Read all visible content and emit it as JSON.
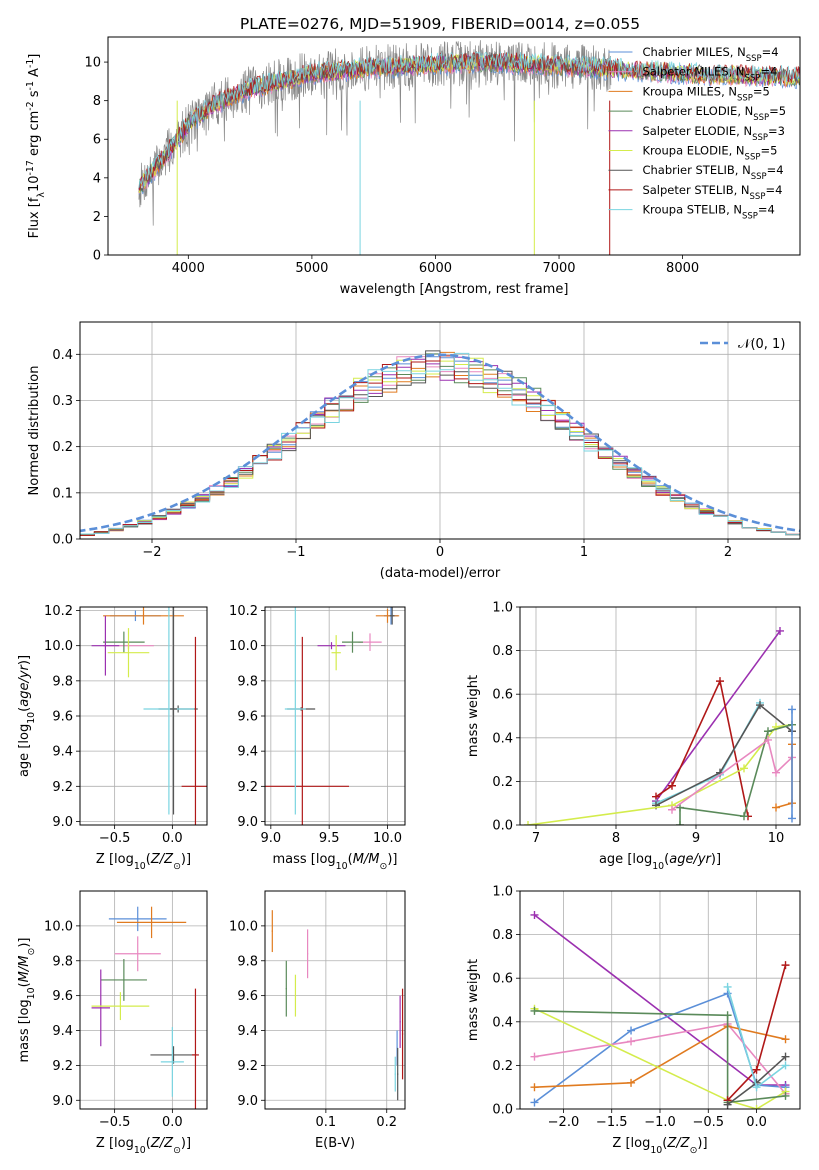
{
  "figure": {
    "title": "PLATE=0276, MJD=51909, FIBERID=0014, z=0.055"
  },
  "colors": {
    "chabrier_miles": "#5b8fd8",
    "salpeter_miles": "#e888c0",
    "kroupa_miles": "#e07b20",
    "chabrier_elodie": "#5a8a5a",
    "salpeter_elodie": "#9b30b0",
    "kroupa_elodie": "#d4ec4c",
    "chabrier_stelib": "#555555",
    "salpeter_stelib": "#b01818",
    "kroupa_stelib": "#7ad4e0",
    "data_gray": "#888888",
    "normal": "#5b8fd8"
  },
  "chart_data": [
    {
      "id": "spectrum",
      "type": "line",
      "xlabel": "wavelength [Angstrom, rest frame]",
      "ylabel": "Flux [f$_\\lambda$10$^{-17}$ erg cm$^{-2}$ s$^{-1}$ A$^{-1}$]",
      "xlim": [
        3350,
        8950
      ],
      "ylim": [
        0,
        11.3
      ],
      "xticks": [
        4000,
        5000,
        6000,
        7000,
        8000
      ],
      "yticks": [
        0,
        2,
        4,
        6,
        8,
        10
      ],
      "data_range": [
        3600,
        7420
      ],
      "model_range": [
        3600,
        9200
      ],
      "continuum": [
        [
          3600,
          3.5
        ],
        [
          3800,
          5.0
        ],
        [
          4000,
          6.8
        ],
        [
          4200,
          7.8
        ],
        [
          4500,
          8.6
        ],
        [
          5000,
          9.4
        ],
        [
          5500,
          9.7
        ],
        [
          6000,
          9.9
        ],
        [
          6500,
          10.0
        ],
        [
          7000,
          9.8
        ],
        [
          7500,
          9.6
        ],
        [
          8000,
          9.4
        ],
        [
          8500,
          9.3
        ],
        [
          9000,
          9.2
        ]
      ],
      "legend": [
        {
          "label": "Chabrier MILES, N",
          "sub": "SSP",
          "suffix": "=4",
          "color": "#5b8fd8"
        },
        {
          "label": "Salpeter MILES, N",
          "sub": "SSP",
          "suffix": "=4",
          "color": "#e888c0"
        },
        {
          "label": "Kroupa MILES, N",
          "sub": "SSP",
          "suffix": "=5",
          "color": "#e07b20"
        },
        {
          "label": "Chabrier ELODIE, N",
          "sub": "SSP",
          "suffix": "=5",
          "color": "#5a8a5a"
        },
        {
          "label": "Salpeter ELODIE, N",
          "sub": "SSP",
          "suffix": "=3",
          "color": "#9b30b0"
        },
        {
          "label": "Kroupa ELODIE, N",
          "sub": "SSP",
          "suffix": "=5",
          "color": "#d4ec4c"
        },
        {
          "label": "Chabrier STELIB, N",
          "sub": "SSP",
          "suffix": "=4",
          "color": "#555555"
        },
        {
          "label": "Salpeter STELIB, N",
          "sub": "SSP",
          "suffix": "=4",
          "color": "#b01818"
        },
        {
          "label": "Kroupa STELIB, N",
          "sub": "SSP",
          "suffix": "=4",
          "color": "#7ad4e0"
        }
      ]
    },
    {
      "id": "residuals",
      "type": "histogram",
      "xlabel": "(data-model)/error",
      "ylabel": "Normed distribution",
      "xlim": [
        -2.5,
        2.5
      ],
      "ylim": [
        0,
        0.47
      ],
      "xticks": [
        -2,
        -1,
        0,
        1,
        2
      ],
      "yticks": [
        0.0,
        0.1,
        0.2,
        0.3,
        0.4
      ],
      "bin_width": 0.1,
      "legend_label": "$\\mathcal{N}(0, 1)$"
    },
    {
      "id": "age_vs_z",
      "type": "errorbar",
      "xlabel": "Z [log$_{10}$($Z/Z_\\odot$)]",
      "ylabel": "age  [log$_{10}$($age/yr$)]",
      "xlim": [
        -0.8,
        0.3
      ],
      "ylim": [
        8.98,
        10.22
      ],
      "xticks": [
        -0.5,
        0.0
      ],
      "yticks": [
        9.0,
        9.2,
        9.4,
        9.6,
        9.8,
        10.0,
        10.2
      ],
      "points": [
        {
          "c": "chabrier_miles",
          "x": -0.32,
          "y": 10.17,
          "xe": 0.22,
          "ye": 0.03
        },
        {
          "c": "salpeter_miles",
          "x": -0.38,
          "y": 10.0,
          "xe": 0.22,
          "ye": 0.02
        },
        {
          "c": "kroupa_miles",
          "x": -0.25,
          "y": 10.17,
          "xe": 0.35,
          "ye": 0.05
        },
        {
          "c": "chabrier_elodie",
          "x": -0.42,
          "y": 10.02,
          "xe": 0.18,
          "ye": 0.06
        },
        {
          "c": "salpeter_elodie",
          "x": -0.58,
          "y": 10.0,
          "xe": 0.12,
          "ye": 0.17
        },
        {
          "c": "kroupa_elodie",
          "x": -0.38,
          "y": 9.96,
          "xe": 0.18,
          "ye": 0.14
        },
        {
          "c": "chabrier_stelib",
          "x": 0.05,
          "y": 9.64,
          "xe": 0.17,
          "ye": 0.02
        },
        {
          "c": "salpeter_stelib",
          "x": 0.2,
          "y": 9.2,
          "xe": 0.12,
          "ye": 0.85
        },
        {
          "c": "kroupa_stelib",
          "x": -0.03,
          "y": 9.64,
          "xe": 0.22,
          "ye": 0.6
        },
        {
          "c": "chabrier_stelib",
          "x": 0.01,
          "y": 9.64,
          "xe": 0.03,
          "ye": 0.6
        }
      ]
    },
    {
      "id": "age_vs_mass",
      "type": "errorbar",
      "xlabel": "mass [log$_{10}$($M/M_\\odot$)]",
      "ylabel": "",
      "xlim": [
        8.95,
        10.15
      ],
      "ylim": [
        8.98,
        10.22
      ],
      "xticks": [
        9.0,
        9.5,
        10.0
      ],
      "yticks": [
        9.0,
        9.2,
        9.4,
        9.6,
        9.8,
        10.0,
        10.2
      ],
      "points": [
        {
          "c": "chabrier_miles",
          "x": 10.03,
          "y": 10.17,
          "xe": 0.06,
          "ye": 0.05
        },
        {
          "c": "salpeter_miles",
          "x": 9.85,
          "y": 10.02,
          "xe": 0.1,
          "ye": 0.05
        },
        {
          "c": "kroupa_miles",
          "x": 10.0,
          "y": 10.17,
          "xe": 0.1,
          "ye": 0.04
        },
        {
          "c": "chabrier_elodie",
          "x": 9.7,
          "y": 10.02,
          "xe": 0.09,
          "ye": 0.06
        },
        {
          "c": "salpeter_elodie",
          "x": 9.52,
          "y": 10.0,
          "xe": 0.12,
          "ye": 0.02
        },
        {
          "c": "kroupa_elodie",
          "x": 9.56,
          "y": 9.96,
          "xe": 0.04,
          "ye": 0.1
        },
        {
          "c": "chabrier_stelib",
          "x": 9.26,
          "y": 9.64,
          "xe": 0.12,
          "ye": 0.01
        },
        {
          "c": "salpeter_stelib",
          "x": 9.27,
          "y": 9.2,
          "xe": 0.4,
          "ye": 0.85
        },
        {
          "c": "kroupa_stelib",
          "x": 9.21,
          "y": 9.64,
          "xe": 0.09,
          "ye": 0.6
        },
        {
          "c": "chabrier_stelib",
          "x": 10.04,
          "y": 10.17,
          "xe": 0.02,
          "ye": 0.05
        }
      ]
    },
    {
      "id": "weight_vs_age",
      "type": "line",
      "xlabel": "age  [log$_{10}$($age/yr$)]",
      "ylabel": "mass weight",
      "xlim": [
        6.8,
        10.3
      ],
      "ylim": [
        0,
        1.0
      ],
      "xticks": [
        7,
        8,
        9,
        10
      ],
      "yticks": [
        0.0,
        0.2,
        0.4,
        0.6,
        0.8,
        1.0
      ],
      "series": [
        {
          "c": "salpeter_elodie",
          "x": [
            8.5,
            10.05
          ],
          "y": [
            0.11,
            0.89
          ]
        },
        {
          "c": "salpeter_stelib",
          "x": [
            8.5,
            8.7,
            9.3,
            9.65
          ],
          "y": [
            0.13,
            0.18,
            0.66,
            0.04
          ]
        },
        {
          "c": "kroupa_stelib",
          "x": [
            8.5,
            9.3,
            9.8
          ],
          "y": [
            0.1,
            0.23,
            0.56
          ]
        },
        {
          "c": "chabrier_stelib",
          "x": [
            8.5,
            9.3,
            9.8,
            10.2
          ],
          "y": [
            0.09,
            0.24,
            0.55,
            0.43
          ]
        },
        {
          "c": "kroupa_elodie",
          "x": [
            6.9,
            8.7,
            9.6,
            10.0,
            10.2
          ],
          "y": [
            0.0,
            0.09,
            0.26,
            0.45,
            0.46
          ]
        },
        {
          "c": "chabrier_elodie",
          "x": [
            8.8,
            8.8,
            9.6,
            9.9,
            10.2
          ],
          "y": [
            0.0,
            0.08,
            0.04,
            0.43,
            0.46
          ]
        },
        {
          "c": "salpeter_miles",
          "x": [
            8.7,
            9.9,
            10.0,
            10.2
          ],
          "y": [
            0.07,
            0.39,
            0.24,
            0.31
          ]
        },
        {
          "c": "kroupa_miles",
          "x": [
            10.0,
            10.2,
            10.2
          ],
          "y": [
            0.08,
            0.1,
            0.37
          ]
        },
        {
          "c": "chabrier_miles",
          "x": [
            10.2,
            10.2
          ],
          "y": [
            0.03,
            0.53
          ]
        }
      ]
    },
    {
      "id": "mass_vs_z",
      "type": "errorbar",
      "xlabel": "Z [log$_{10}$($Z/Z_\\odot$)]",
      "ylabel": "mass [log$_{10}$($M/M_\\odot$)]",
      "xlim": [
        -0.8,
        0.3
      ],
      "ylim": [
        8.95,
        10.2
      ],
      "xticks": [
        -0.5,
        0.0
      ],
      "yticks": [
        9.0,
        9.2,
        9.4,
        9.6,
        9.8,
        10.0
      ],
      "points": [
        {
          "c": "chabrier_miles",
          "x": -0.3,
          "y": 10.04,
          "xe": 0.25,
          "ye": 0.07
        },
        {
          "c": "salpeter_miles",
          "x": -0.3,
          "y": 9.84,
          "xe": 0.2,
          "ye": 0.1
        },
        {
          "c": "kroupa_miles",
          "x": -0.18,
          "y": 10.02,
          "xe": 0.3,
          "ye": 0.09
        },
        {
          "c": "chabrier_elodie",
          "x": -0.42,
          "y": 9.69,
          "xe": 0.2,
          "ye": 0.12
        },
        {
          "c": "salpeter_elodie",
          "x": -0.62,
          "y": 9.53,
          "xe": 0.08,
          "ye": 0.22
        },
        {
          "c": "kroupa_elodie",
          "x": -0.45,
          "y": 9.54,
          "xe": 0.25,
          "ye": 0.08
        },
        {
          "c": "chabrier_stelib",
          "x": 0.01,
          "y": 9.26,
          "xe": 0.2,
          "ye": 0.05
        },
        {
          "c": "salpeter_stelib",
          "x": 0.2,
          "y": 9.26,
          "xe": 0.03,
          "ye": 0.38
        },
        {
          "c": "kroupa_stelib",
          "x": 0.0,
          "y": 9.22,
          "xe": 0.1,
          "ye": 0.2
        }
      ]
    },
    {
      "id": "mass_vs_ebv",
      "type": "errorbar",
      "xlabel": "E(B-V)",
      "ylabel": "",
      "xlim": [
        0.0,
        0.23
      ],
      "ylim": [
        8.95,
        10.2
      ],
      "xticks": [
        0.1,
        0.2
      ],
      "yticks": [
        9.0,
        9.2,
        9.4,
        9.6,
        9.8,
        10.0
      ],
      "points": [
        {
          "c": "kroupa_miles",
          "x": 0.012,
          "y": 9.97,
          "xe": 0.001,
          "ye": 0.12
        },
        {
          "c": "chabrier_elodie",
          "x": 0.035,
          "y": 9.64,
          "xe": 0.001,
          "ye": 0.16
        },
        {
          "c": "kroupa_elodie",
          "x": 0.05,
          "y": 9.6,
          "xe": 0.001,
          "ye": 0.12
        },
        {
          "c": "salpeter_miles",
          "x": 0.07,
          "y": 9.84,
          "xe": 0.001,
          "ye": 0.14
        },
        {
          "c": "chabrier_miles",
          "x": 0.217,
          "y": 9.3,
          "xe": 0.001,
          "ye": 0.1
        },
        {
          "c": "salpeter_elodie",
          "x": 0.222,
          "y": 9.45,
          "xe": 0.001,
          "ye": 0.15
        },
        {
          "c": "chabrier_stelib",
          "x": 0.218,
          "y": 9.15,
          "xe": 0.001,
          "ye": 0.15
        },
        {
          "c": "salpeter_stelib",
          "x": 0.226,
          "y": 9.38,
          "xe": 0.001,
          "ye": 0.26
        },
        {
          "c": "kroupa_stelib",
          "x": 0.214,
          "y": 9.15,
          "xe": 0.001,
          "ye": 0.1
        }
      ]
    },
    {
      "id": "weight_vs_z",
      "type": "line",
      "xlabel": "Z [log$_{10}$($Z/Z_\\odot$)]",
      "ylabel": "mass weight",
      "xlim": [
        -2.45,
        0.45
      ],
      "ylim": [
        0,
        1.0
      ],
      "xticks": [
        -2.0,
        -1.5,
        -1.0,
        -0.5,
        0.0
      ],
      "yticks": [
        0.0,
        0.2,
        0.4,
        0.6,
        0.8,
        1.0
      ],
      "series": [
        {
          "c": "salpeter_elodie",
          "x": [
            -2.3,
            0.0,
            0.3
          ],
          "y": [
            0.89,
            0.11,
            0.11
          ]
        },
        {
          "c": "chabrier_miles",
          "x": [
            -2.3,
            -1.3,
            -0.3,
            0.0,
            0.3
          ],
          "y": [
            0.03,
            0.36,
            0.53,
            0.11,
            0.1
          ]
        },
        {
          "c": "salpeter_miles",
          "x": [
            -2.3,
            -1.3,
            -0.3,
            0.3
          ],
          "y": [
            0.24,
            0.31,
            0.39,
            0.07
          ]
        },
        {
          "c": "kroupa_miles",
          "x": [
            -2.3,
            -1.3,
            -0.3,
            0.3
          ],
          "y": [
            0.1,
            0.12,
            0.38,
            0.32
          ]
        },
        {
          "c": "kroupa_elodie",
          "x": [
            -2.3,
            -0.3,
            0.0,
            0.3
          ],
          "y": [
            0.46,
            0.04,
            0.0,
            0.08
          ]
        },
        {
          "c": "chabrier_elodie",
          "x": [
            -2.3,
            -0.3,
            -0.3,
            0.3
          ],
          "y": [
            0.45,
            0.43,
            0.03,
            0.06
          ]
        },
        {
          "c": "salpeter_stelib",
          "x": [
            -0.3,
            0.0,
            0.3
          ],
          "y": [
            0.04,
            0.18,
            0.66
          ]
        },
        {
          "c": "chabrier_stelib",
          "x": [
            -0.3,
            0.0,
            0.3
          ],
          "y": [
            0.02,
            0.12,
            0.24
          ]
        },
        {
          "c": "kroupa_stelib",
          "x": [
            -0.3,
            0.0,
            0.3
          ],
          "y": [
            0.56,
            0.1,
            0.2
          ]
        }
      ]
    }
  ]
}
